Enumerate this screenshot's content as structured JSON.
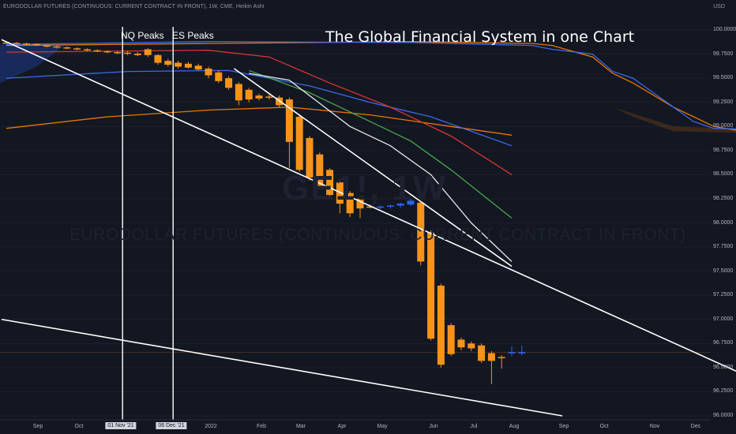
{
  "header": {
    "symbol_line": "EURODOLLAR FUTURES (CONTINUOUS: CURRENT CONTRACT IN FRONT), 1W, CME, Heikin Ashi",
    "currency": "USD",
    "chart_title": "The Global Financial System in one Chart",
    "watermark_symbol": "GE1!, 1W",
    "watermark_name": "EURODOLLAR FUTURES (CONTINUOUS: CURRENT CONTRACT IN FRONT)"
  },
  "annotations": {
    "nq_peaks": "NQ Peaks",
    "es_peaks": "ES Peaks"
  },
  "date_labels": {
    "nq": "01 Nov '21",
    "es": "06 Dec '21"
  },
  "colors": {
    "background": "#131722",
    "candle_bear": "#f7931a",
    "candle_bull": "#2962ff",
    "ma_orange": "#f57c00",
    "ma_blue": "#3d6ef5",
    "ma_red": "#e53935",
    "ma_green": "#4caf50",
    "ma_white": "#ffffff",
    "trendline": "#ffffff"
  },
  "chart_data": {
    "type": "candlestick",
    "style": "Heikin Ashi",
    "interval": "1W",
    "y_axis": {
      "min": 96.0,
      "max": 100.0,
      "ticks": [
        "100.0000",
        "99.7500",
        "99.5000",
        "99.2500",
        "99.0000",
        "98.7500",
        "98.5000",
        "98.2500",
        "98.0000",
        "97.7500",
        "97.5000",
        "97.2500",
        "97.0000",
        "96.7500",
        "96.5000",
        "96.2500",
        "96.0000"
      ]
    },
    "x_axis": {
      "ticks": [
        "Sep",
        "Oct",
        "01 Nov '21",
        "06 Dec '21",
        "2022",
        "Feb",
        "Mar",
        "Apr",
        "May",
        "Jun",
        "Jul",
        "Aug",
        "Sep",
        "Oct",
        "Nov",
        "Dec"
      ]
    },
    "candles": [
      {
        "week": 0,
        "o": 99.87,
        "h": 99.88,
        "l": 99.86,
        "c": 99.865
      },
      {
        "week": 1,
        "o": 99.865,
        "h": 99.875,
        "l": 99.855,
        "c": 99.86
      },
      {
        "week": 2,
        "o": 99.86,
        "h": 99.87,
        "l": 99.85,
        "c": 99.855
      },
      {
        "week": 3,
        "o": 99.855,
        "h": 99.86,
        "l": 99.835,
        "c": 99.84
      },
      {
        "week": 4,
        "o": 99.84,
        "h": 99.85,
        "l": 99.82,
        "c": 99.83
      },
      {
        "week": 5,
        "o": 99.83,
        "h": 99.84,
        "l": 99.81,
        "c": 99.82
      },
      {
        "week": 6,
        "o": 99.82,
        "h": 99.83,
        "l": 99.8,
        "c": 99.81
      },
      {
        "week": 7,
        "o": 99.81,
        "h": 99.82,
        "l": 99.79,
        "c": 99.8
      },
      {
        "week": 8,
        "o": 99.8,
        "h": 99.81,
        "l": 99.78,
        "c": 99.79
      },
      {
        "week": 9,
        "o": 99.79,
        "h": 99.8,
        "l": 99.77,
        "c": 99.78
      },
      {
        "week": 10,
        "o": 99.78,
        "h": 99.79,
        "l": 99.76,
        "c": 99.77
      },
      {
        "week": 11,
        "o": 99.77,
        "h": 99.78,
        "l": 99.75,
        "c": 99.765
      },
      {
        "week": 12,
        "o": 99.765,
        "h": 99.78,
        "l": 99.74,
        "c": 99.755
      },
      {
        "week": 13,
        "o": 99.755,
        "h": 99.77,
        "l": 99.73,
        "c": 99.74
      },
      {
        "week": 14,
        "o": 99.8,
        "h": 99.81,
        "l": 99.72,
        "c": 99.74
      },
      {
        "week": 15,
        "o": 99.74,
        "h": 99.75,
        "l": 99.64,
        "c": 99.66
      },
      {
        "week": 16,
        "o": 99.68,
        "h": 99.7,
        "l": 99.62,
        "c": 99.64
      },
      {
        "week": 17,
        "o": 99.66,
        "h": 99.68,
        "l": 99.6,
        "c": 99.62
      },
      {
        "week": 18,
        "o": 99.65,
        "h": 99.67,
        "l": 99.6,
        "c": 99.61
      },
      {
        "week": 19,
        "o": 99.63,
        "h": 99.65,
        "l": 99.58,
        "c": 99.59
      },
      {
        "week": 20,
        "o": 99.6,
        "h": 99.62,
        "l": 99.5,
        "c": 99.53
      },
      {
        "week": 21,
        "o": 99.56,
        "h": 99.58,
        "l": 99.45,
        "c": 99.47
      },
      {
        "week": 22,
        "o": 99.5,
        "h": 99.52,
        "l": 99.38,
        "c": 99.4
      },
      {
        "week": 23,
        "o": 99.44,
        "h": 99.46,
        "l": 99.22,
        "c": 99.27
      },
      {
        "week": 24,
        "o": 99.38,
        "h": 99.4,
        "l": 99.25,
        "c": 99.28
      },
      {
        "week": 25,
        "o": 99.32,
        "h": 99.34,
        "l": 99.27,
        "c": 99.29
      },
      {
        "week": 26,
        "o": 99.31,
        "h": 99.33,
        "l": 99.28,
        "c": 99.3
      },
      {
        "week": 27,
        "o": 99.3,
        "h": 99.32,
        "l": 99.2,
        "c": 99.22
      },
      {
        "week": 28,
        "o": 99.28,
        "h": 99.3,
        "l": 98.57,
        "c": 98.84
      },
      {
        "week": 29,
        "o": 99.1,
        "h": 99.12,
        "l": 98.53,
        "c": 98.55
      },
      {
        "week": 30,
        "o": 98.88,
        "h": 98.9,
        "l": 98.44,
        "c": 98.47
      },
      {
        "week": 31,
        "o": 98.71,
        "h": 98.73,
        "l": 98.36,
        "c": 98.38
      },
      {
        "week": 32,
        "o": 98.55,
        "h": 98.57,
        "l": 98.27,
        "c": 98.29
      },
      {
        "week": 33,
        "o": 98.42,
        "h": 98.44,
        "l": 98.1,
        "c": 98.2
      },
      {
        "week": 34,
        "o": 98.31,
        "h": 98.33,
        "l": 98.06,
        "c": 98.1
      },
      {
        "week": 35,
        "o": 98.25,
        "h": 98.26,
        "l": 98.05,
        "c": 98.15
      },
      {
        "week": 36,
        "o": 98.17,
        "h": 98.19,
        "l": 98.15,
        "c": 98.16
      },
      {
        "week": 37,
        "o": 98.16,
        "h": 98.18,
        "l": 98.14,
        "c": 98.17
      },
      {
        "week": 38,
        "o": 98.17,
        "h": 98.19,
        "l": 98.15,
        "c": 98.18
      },
      {
        "week": 39,
        "o": 98.18,
        "h": 98.21,
        "l": 98.16,
        "c": 98.2
      },
      {
        "week": 40,
        "o": 98.19,
        "h": 98.25,
        "l": 98.18,
        "c": 98.23
      },
      {
        "week": 41,
        "o": 98.21,
        "h": 98.22,
        "l": 97.56,
        "c": 97.6
      },
      {
        "week": 42,
        "o": 97.9,
        "h": 97.92,
        "l": 96.78,
        "c": 96.8
      },
      {
        "week": 43,
        "o": 97.35,
        "h": 97.37,
        "l": 96.5,
        "c": 96.53
      },
      {
        "week": 44,
        "o": 96.94,
        "h": 96.96,
        "l": 96.62,
        "c": 96.64
      },
      {
        "week": 45,
        "o": 96.79,
        "h": 96.81,
        "l": 96.68,
        "c": 96.71
      },
      {
        "week": 46,
        "o": 96.75,
        "h": 96.77,
        "l": 96.67,
        "c": 96.7
      },
      {
        "week": 47,
        "o": 96.73,
        "h": 96.75,
        "l": 96.55,
        "c": 96.57
      },
      {
        "week": 48,
        "o": 96.65,
        "h": 96.67,
        "l": 96.33,
        "c": 96.57
      },
      {
        "week": 49,
        "o": 96.61,
        "h": 96.63,
        "l": 96.49,
        "c": 96.6
      },
      {
        "week": 50,
        "o": 96.65,
        "h": 96.72,
        "l": 96.62,
        "c": 96.66
      },
      {
        "week": 51,
        "o": 96.65,
        "h": 96.73,
        "l": 96.63,
        "c": 96.66
      }
    ],
    "moving_averages": [
      {
        "color": "orange",
        "points": [
          [
            0,
            99.84
          ],
          [
            20,
            99.86
          ],
          [
            40,
            99.88
          ],
          [
            52,
            99.86
          ],
          [
            54,
            99.84
          ],
          [
            58,
            99.72
          ],
          [
            60,
            99.55
          ],
          [
            62,
            99.45
          ],
          [
            66,
            99.2
          ],
          [
            68,
            99.1
          ],
          [
            70,
            99.0
          ],
          [
            74,
            98.93
          ],
          [
            77,
            98.62
          ],
          [
            79,
            97.9
          ],
          [
            81,
            97.75
          ]
        ]
      },
      {
        "color": "orange",
        "points": [
          [
            0,
            98.98
          ],
          [
            10,
            99.1
          ],
          [
            20,
            99.17
          ],
          [
            28,
            99.2
          ],
          [
            36,
            99.12
          ],
          [
            44,
            99.0
          ],
          [
            50,
            98.91
          ]
        ]
      },
      {
        "color": "blue",
        "points": [
          [
            0,
            99.85
          ],
          [
            20,
            99.88
          ],
          [
            40,
            99.87
          ],
          [
            52,
            99.84
          ],
          [
            54,
            99.8
          ],
          [
            58,
            99.75
          ],
          [
            60,
            99.57
          ],
          [
            62,
            99.5
          ],
          [
            66,
            99.2
          ],
          [
            68,
            99.05
          ],
          [
            70,
            98.98
          ],
          [
            74,
            98.97
          ],
          [
            78,
            98.2
          ],
          [
            81,
            98.2
          ]
        ]
      },
      {
        "color": "blue",
        "points": [
          [
            0,
            99.5
          ],
          [
            12,
            99.57
          ],
          [
            22,
            99.58
          ],
          [
            30,
            99.42
          ],
          [
            36,
            99.25
          ],
          [
            42,
            99.1
          ],
          [
            50,
            98.8
          ]
        ]
      },
      {
        "color": "red",
        "points": [
          [
            0,
            99.77
          ],
          [
            20,
            99.79
          ],
          [
            26,
            99.72
          ],
          [
            32,
            99.45
          ],
          [
            38,
            99.2
          ],
          [
            44,
            98.9
          ],
          [
            50,
            98.5
          ]
        ]
      },
      {
        "color": "green",
        "points": [
          [
            24,
            99.58
          ],
          [
            30,
            99.35
          ],
          [
            36,
            99.05
          ],
          [
            40,
            98.85
          ],
          [
            44,
            98.55
          ],
          [
            50,
            98.05
          ]
        ]
      },
      {
        "color": "white",
        "points": [
          [
            24,
            99.55
          ],
          [
            28,
            99.48
          ],
          [
            34,
            99.0
          ],
          [
            38,
            98.8
          ],
          [
            42,
            98.5
          ],
          [
            46,
            98.0
          ],
          [
            50,
            97.6
          ]
        ]
      }
    ],
    "cloud_region": {
      "color": "blue",
      "x_range": [
        0,
        6
      ]
    },
    "trendlines": [
      {
        "from": [
          0,
          99.9
        ],
        "to": [
          82,
          96.0
        ]
      },
      {
        "from": [
          23,
          99.6
        ],
        "to": [
          50,
          97.55
        ]
      },
      {
        "from": [
          0,
          97.0
        ],
        "to": [
          55,
          96.0
        ]
      }
    ],
    "vertical_markers": [
      {
        "label": "NQ Peaks",
        "week": 11.5
      },
      {
        "label": "ES Peaks",
        "week": 16.5
      }
    ],
    "horizontal_price_line": 96.66
  }
}
